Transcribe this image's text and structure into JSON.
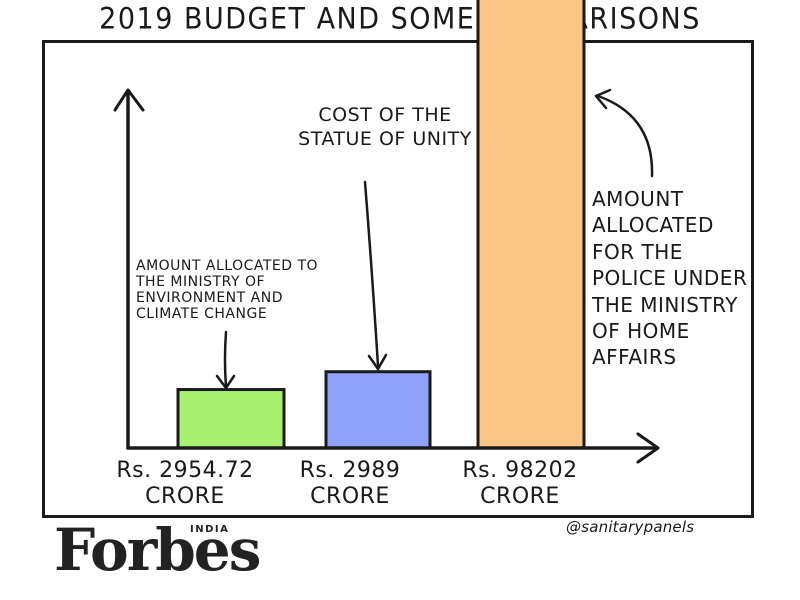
{
  "title": "2019 BUDGET  AND SOME COMPARISONS",
  "chart_data": {
    "type": "bar",
    "categories": [
      "Rs. 2954.72 CRORE",
      "Rs. 2989 CRORE",
      "Rs. 98202 CRORE"
    ],
    "values": [
      2954.72,
      2989,
      98202
    ],
    "value_unit": "Rs. crore",
    "title": "2019 BUDGET  AND SOME COMPARISONS",
    "ylabel": "",
    "bar_colors": [
      "#A6F26E",
      "#8FA2F7",
      "#FBC685"
    ],
    "annotations": [
      "AMOUNT ALLOCATED TO THE MINISTRY OF ENVIRONMENT AND CLIMATE CHANGE",
      "COST OF THE STATUE OF UNITY",
      "AMOUNT ALLOCATED FOR THE POLICE UNDER THE MINISTRY OF HOME AFFAIRS"
    ]
  },
  "notes": {
    "env": "AMOUNT ALLOCATED TO THE MINISTRY OF ENVIRONMENT AND CLIMATE CHANGE",
    "statue": "COST OF THE STATUE OF UNITY",
    "police": "AMOUNT ALLOCATED FOR THE POLICE UNDER THE MINISTRY OF HOME AFFAIRS"
  },
  "xlabels": [
    {
      "line1": "Rs. 2954.72",
      "line2": "CRORE"
    },
    {
      "line1": "Rs. 2989",
      "line2": "CRORE"
    },
    {
      "line1": "Rs. 98202",
      "line2": "CRORE"
    }
  ],
  "credit": "@sanitarypanels",
  "logo": {
    "word": "Forbes",
    "edition": "INDIA"
  }
}
